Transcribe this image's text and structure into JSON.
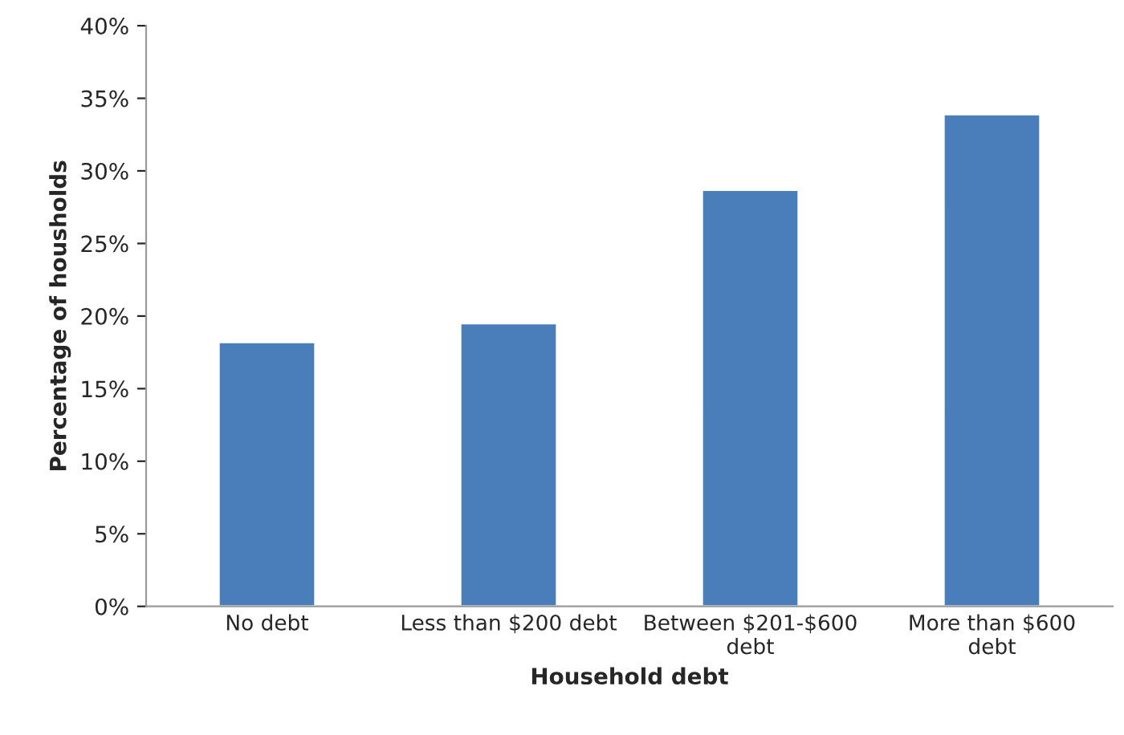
{
  "chart_data": {
    "type": "bar",
    "xlabel": "Household debt",
    "ylabel": "Percentage of housholds",
    "categories": [
      "No debt",
      "Less than $200 debt",
      "Between $201-$600\ndebt",
      "More than $600\ndebt"
    ],
    "values": [
      18.2,
      19.5,
      28.7,
      33.9
    ],
    "color": "#4a7ebb",
    "ylim": [
      0,
      40
    ],
    "yticks": [
      {
        "value": 0,
        "label": "0%"
      },
      {
        "value": 5,
        "label": "5%"
      },
      {
        "value": 10,
        "label": "10%"
      },
      {
        "value": 15,
        "label": "15%"
      },
      {
        "value": 20,
        "label": "20%"
      },
      {
        "value": 25,
        "label": "25%"
      },
      {
        "value": 30,
        "label": "30%"
      },
      {
        "value": 35,
        "label": "35%"
      },
      {
        "value": 40,
        "label": "40%"
      }
    ],
    "grid": false
  }
}
